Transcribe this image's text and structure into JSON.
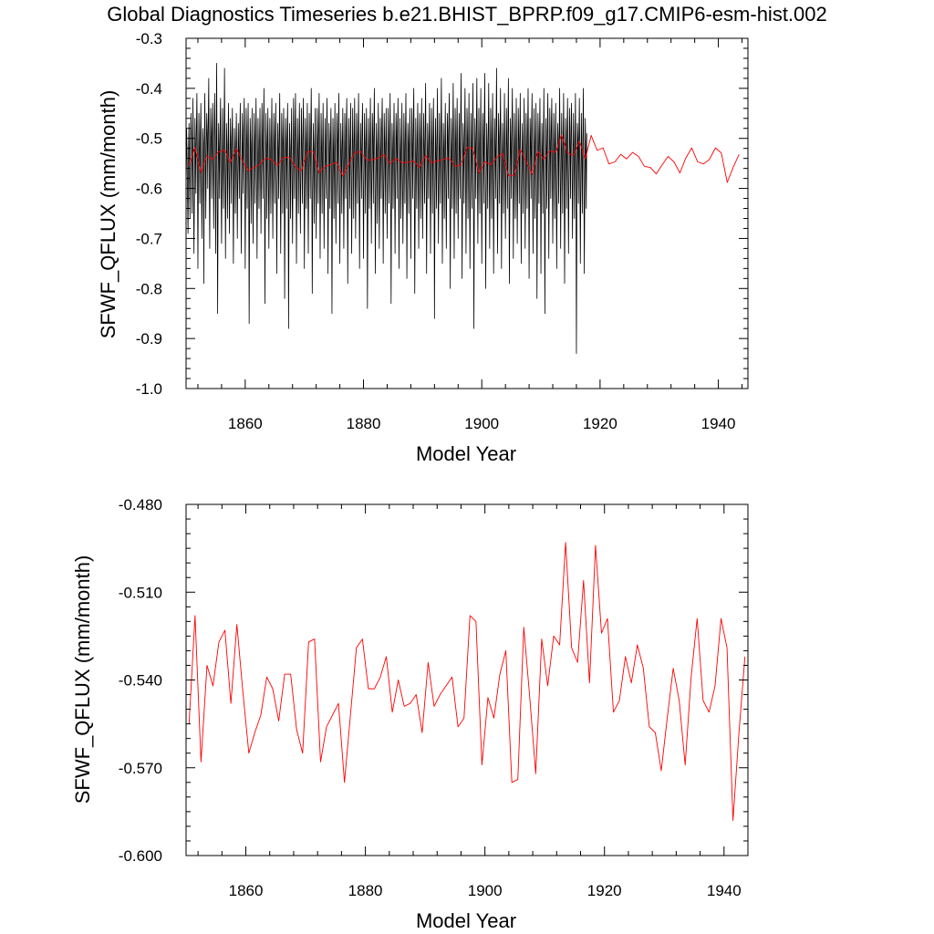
{
  "title": "Global Diagnostics Timeseries b.e21.BHIST_BPRP.f09_g17.CMIP6-esm-hist.002",
  "colors": {
    "monthly": "#000000",
    "annual": "#ff0000",
    "axes": "#000000"
  },
  "chart_data": [
    {
      "type": "line",
      "panel": "top",
      "xlabel": "Model Year",
      "ylabel": "SFWF_QFLUX (mm/month)",
      "xlim": [
        1850,
        1945
      ],
      "ylim": [
        -1.0,
        -0.3
      ],
      "xticks": [
        1860,
        1880,
        1900,
        1920,
        1940
      ],
      "xtick_labels": [
        "1860",
        "1880",
        "1900",
        "1920",
        "1940"
      ],
      "yticks": [
        -1.0,
        -0.9,
        -0.8,
        -0.7,
        -0.6,
        -0.5,
        -0.4,
        -0.3
      ],
      "ytick_labels": [
        "-1.0",
        "-0.9",
        "-0.8",
        "-0.7",
        "-0.6",
        "-0.5",
        "-0.4",
        "-0.3"
      ],
      "grid": false,
      "legend": "none",
      "monthly_series": {
        "x_start": 1850.0,
        "x_step": 0.0833333,
        "values": [
          -0.6,
          -0.48,
          -0.53,
          -0.62,
          -0.69,
          -0.52,
          -0.47,
          -0.58,
          -0.66,
          -0.51,
          -0.45,
          -0.5,
          -0.65,
          -0.54,
          -0.42,
          -0.59,
          -0.73,
          -0.6,
          -0.46,
          -0.52,
          -0.61,
          -0.48,
          -0.41,
          -0.55,
          -0.76,
          -0.57,
          -0.45,
          -0.53,
          -0.63,
          -0.49,
          -0.43,
          -0.56,
          -0.7,
          -0.58,
          -0.48,
          -0.51,
          -0.79,
          -0.55,
          -0.41,
          -0.52,
          -0.66,
          -0.53,
          -0.45,
          -0.49,
          -0.6,
          -0.47,
          -0.38,
          -0.57,
          -0.72,
          -0.56,
          -0.44,
          -0.5,
          -0.62,
          -0.49,
          -0.43,
          -0.54,
          -0.68,
          -0.52,
          -0.41,
          -0.5,
          -0.73,
          -0.55,
          -0.35,
          -0.56,
          -0.85,
          -0.62,
          -0.47,
          -0.52,
          -0.62,
          -0.48,
          -0.42,
          -0.59,
          -0.71,
          -0.57,
          -0.44,
          -0.55,
          -0.64,
          -0.51,
          -0.36,
          -0.54,
          -0.74,
          -0.58,
          -0.47,
          -0.51,
          -0.66,
          -0.54,
          -0.43,
          -0.56,
          -0.69,
          -0.55,
          -0.46,
          -0.52,
          -0.63,
          -0.5,
          -0.44,
          -0.57,
          -0.75,
          -0.6,
          -0.48,
          -0.53,
          -0.65,
          -0.52,
          -0.45,
          -0.55,
          -0.7,
          -0.57,
          -0.47,
          -0.53,
          -0.62,
          -0.49,
          -0.43,
          -0.58,
          -0.73,
          -0.59,
          -0.45,
          -0.52,
          -0.61,
          -0.48,
          -0.42,
          -0.56,
          -0.76,
          -0.58,
          -0.44,
          -0.5,
          -0.64,
          -0.52,
          -0.43,
          -0.57,
          -0.87,
          -0.62,
          -0.46,
          -0.51,
          -0.67,
          -0.53,
          -0.44,
          -0.58,
          -0.71,
          -0.57,
          -0.45,
          -0.52,
          -0.63,
          -0.5,
          -0.42,
          -0.55,
          -0.74,
          -0.59,
          -0.46,
          -0.53,
          -0.64,
          -0.51,
          -0.44,
          -0.56,
          -0.69,
          -0.56,
          -0.43,
          -0.52,
          -0.62,
          -0.49,
          -0.4,
          -0.55,
          -0.83,
          -0.6,
          -0.45,
          -0.51,
          -0.66,
          -0.52,
          -0.44,
          -0.57,
          -0.72,
          -0.58,
          -0.46,
          -0.53,
          -0.65,
          -0.51,
          -0.42,
          -0.56,
          -0.7,
          -0.56,
          -0.45,
          -0.52,
          -0.63,
          -0.5,
          -0.43,
          -0.55,
          -0.77,
          -0.6,
          -0.47,
          -0.52,
          -0.62,
          -0.49,
          -0.41,
          -0.57,
          -0.73,
          -0.58,
          -0.45,
          -0.5,
          -0.65,
          -0.52,
          -0.44,
          -0.56,
          -0.82,
          -0.61,
          -0.46,
          -0.51,
          -0.64,
          -0.51,
          -0.43,
          -0.55,
          -0.88,
          -0.63,
          -0.47,
          -0.52,
          -0.66,
          -0.53,
          -0.44,
          -0.57,
          -0.71,
          -0.56,
          -0.42,
          -0.51,
          -0.62,
          -0.49,
          -0.41,
          -0.55,
          -0.75,
          -0.59,
          -0.46,
          -0.53,
          -0.65,
          -0.51,
          -0.43,
          -0.57,
          -0.69,
          -0.56,
          -0.44,
          -0.52,
          -0.63,
          -0.5,
          -0.42,
          -0.55,
          -0.76,
          -0.6,
          -0.46,
          -0.51,
          -0.64,
          -0.52,
          -0.43,
          -0.57,
          -0.73,
          -0.57,
          -0.45,
          -0.53,
          -0.62,
          -0.48,
          -0.4,
          -0.56,
          -0.81,
          -0.61,
          -0.47,
          -0.52,
          -0.67,
          -0.53,
          -0.44,
          -0.56,
          -0.7,
          -0.56,
          -0.44,
          -0.51,
          -0.63,
          -0.49,
          -0.41,
          -0.55,
          -0.74,
          -0.59,
          -0.45,
          -0.52,
          -0.65,
          -0.52,
          -0.43,
          -0.57,
          -0.72,
          -0.58,
          -0.46,
          -0.53,
          -0.62,
          -0.5,
          -0.42,
          -0.55,
          -0.77,
          -0.6,
          -0.47,
          -0.51,
          -0.64,
          -0.51,
          -0.44,
          -0.56,
          -0.85,
          -0.62,
          -0.46,
          -0.52,
          -0.66,
          -0.53,
          -0.43,
          -0.57,
          -0.71,
          -0.57,
          -0.45,
          -0.5,
          -0.63,
          -0.49,
          -0.41,
          -0.56,
          -0.75,
          -0.59,
          -0.47,
          -0.52,
          -0.65,
          -0.52,
          -0.44,
          -0.55,
          -0.72,
          -0.58,
          -0.45,
          -0.53,
          -0.62,
          -0.48,
          -0.42,
          -0.56,
          -0.79,
          -0.61,
          -0.46,
          -0.52,
          -0.64,
          -0.51,
          -0.43,
          -0.57,
          -0.73,
          -0.57,
          -0.44,
          -0.51,
          -0.66,
          -0.52,
          -0.42,
          -0.55,
          -0.7,
          -0.56,
          -0.45,
          -0.52,
          -0.63,
          -0.5,
          -0.41,
          -0.56,
          -0.76,
          -0.6,
          -0.47,
          -0.53,
          -0.62,
          -0.49,
          -0.43,
          -0.57,
          -0.74,
          -0.58,
          -0.45,
          -0.51,
          -0.65,
          -0.52,
          -0.44,
          -0.56,
          -0.84,
          -0.62,
          -0.46,
          -0.52,
          -0.64,
          -0.51,
          -0.42,
          -0.55,
          -0.71,
          -0.57,
          -0.45,
          -0.5,
          -0.63,
          -0.49,
          -0.4,
          -0.56,
          -0.77,
          -0.6,
          -0.47,
          -0.52,
          -0.67,
          -0.53,
          -0.43,
          -0.57,
          -0.72,
          -0.58,
          -0.46,
          -0.53,
          -0.62,
          -0.48,
          -0.42,
          -0.55,
          -0.75,
          -0.59,
          -0.45,
          -0.51,
          -0.65,
          -0.52,
          -0.44,
          -0.56,
          -0.7,
          -0.56,
          -0.44,
          -0.52,
          -0.63,
          -0.5,
          -0.41,
          -0.57,
          -0.83,
          -0.61,
          -0.47,
          -0.52,
          -0.64,
          -0.51,
          -0.43,
          -0.56,
          -0.73,
          -0.57,
          -0.45,
          -0.5,
          -0.62,
          -0.49,
          -0.42,
          -0.55,
          -0.76,
          -0.6,
          -0.46,
          -0.53,
          -0.66,
          -0.52,
          -0.43,
          -0.57,
          -0.71,
          -0.58,
          -0.45,
          -0.52,
          -0.63,
          -0.5,
          -0.41,
          -0.56,
          -0.78,
          -0.6,
          -0.47,
          -0.51,
          -0.65,
          -0.52,
          -0.44,
          -0.55,
          -0.74,
          -0.57,
          -0.44,
          -0.52,
          -0.62,
          -0.48,
          -0.4,
          -0.57,
          -0.81,
          -0.62,
          -0.46,
          -0.53,
          -0.64,
          -0.51,
          -0.43,
          -0.56,
          -0.72,
          -0.58,
          -0.45,
          -0.5,
          -0.66,
          -0.53,
          -0.42,
          -0.55,
          -0.7,
          -0.56,
          -0.45,
          -0.52,
          -0.63,
          -0.49,
          -0.39,
          -0.56,
          -0.77,
          -0.6,
          -0.47,
          -0.52,
          -0.62,
          -0.5,
          -0.43,
          -0.57,
          -0.73,
          -0.58,
          -0.44,
          -0.51,
          -0.65,
          -0.52,
          -0.42,
          -0.55,
          -0.86,
          -0.63,
          -0.46,
          -0.52,
          -0.64,
          -0.51,
          -0.4,
          -0.56,
          -0.71,
          -0.57,
          -0.45,
          -0.53,
          -0.63,
          -0.49,
          -0.38,
          -0.55,
          -0.75,
          -0.59,
          -0.47,
          -0.52,
          -0.66,
          -0.52,
          -0.43,
          -0.57,
          -0.72,
          -0.58,
          -0.45,
          -0.5,
          -0.62,
          -0.48,
          -0.41,
          -0.56,
          -0.8,
          -0.61,
          -0.46,
          -0.52,
          -0.64,
          -0.5,
          -0.39,
          -0.55,
          -0.74,
          -0.58,
          -0.44,
          -0.51,
          -0.65,
          -0.51,
          -0.42,
          -0.57,
          -0.7,
          -0.56,
          -0.45,
          -0.53,
          -0.62,
          -0.47,
          -0.37,
          -0.56,
          -0.78,
          -0.6,
          -0.47,
          -0.52,
          -0.63,
          -0.49,
          -0.4,
          -0.55,
          -0.73,
          -0.57,
          -0.44,
          -0.5,
          -0.66,
          -0.52,
          -0.41,
          -0.57,
          -0.76,
          -0.59,
          -0.45,
          -0.52,
          -0.64,
          -0.5,
          -0.39,
          -0.56,
          -0.88,
          -0.62,
          -0.46,
          -0.51,
          -0.62,
          -0.48,
          -0.38,
          -0.55,
          -0.71,
          -0.56,
          -0.44,
          -0.53,
          -0.65,
          -0.51,
          -0.4,
          -0.57,
          -0.75,
          -0.59,
          -0.45,
          -0.5,
          -0.63,
          -0.49,
          -0.37,
          -0.56,
          -0.8,
          -0.61,
          -0.47,
          -0.52,
          -0.64,
          -0.5,
          -0.39,
          -0.55,
          -0.72,
          -0.57,
          -0.44,
          -0.51,
          -0.66,
          -0.52,
          -0.41,
          -0.56,
          -0.77,
          -0.6,
          -0.46,
          -0.52,
          -0.62,
          -0.48,
          -0.36,
          -0.57,
          -0.73,
          -0.58,
          -0.45,
          -0.5,
          -0.63,
          -0.5,
          -0.4,
          -0.55,
          -0.76,
          -0.59,
          -0.47,
          -0.53,
          -0.65,
          -0.51,
          -0.41,
          -0.56,
          -0.7,
          -0.56,
          -0.44,
          -0.52,
          -0.64,
          -0.49,
          -0.38,
          -0.57,
          -0.79,
          -0.61,
          -0.46,
          -0.51,
          -0.62,
          -0.48,
          -0.4,
          -0.55,
          -0.74,
          -0.58,
          -0.45,
          -0.52,
          -0.66,
          -0.52,
          -0.42,
          -0.56,
          -0.71,
          -0.57,
          -0.44,
          -0.5,
          -0.63,
          -0.5,
          -0.41,
          -0.57,
          -0.75,
          -0.59,
          -0.47,
          -0.53,
          -0.65,
          -0.51,
          -0.42,
          -0.55,
          -0.72,
          -0.57,
          -0.45,
          -0.52,
          -0.64,
          -0.49,
          -0.4,
          -0.56,
          -0.78,
          -0.6,
          -0.46,
          -0.51,
          -0.62,
          -0.48,
          -0.41,
          -0.57,
          -0.73,
          -0.58,
          -0.44,
          -0.52,
          -0.66,
          -0.52,
          -0.43,
          -0.55,
          -0.82,
          -0.62,
          -0.45,
          -0.5,
          -0.63,
          -0.5,
          -0.42,
          -0.56,
          -0.77,
          -0.6,
          -0.47,
          -0.53,
          -0.65,
          -0.51,
          -0.4,
          -0.57,
          -0.85,
          -0.63,
          -0.46,
          -0.52,
          -0.64,
          -0.49,
          -0.41,
          -0.55,
          -0.74,
          -0.58,
          -0.44,
          -0.51,
          -0.62,
          -0.48,
          -0.42,
          -0.56,
          -0.71,
          -0.56,
          -0.45,
          -0.52,
          -0.66,
          -0.52,
          -0.43,
          -0.57,
          -0.76,
          -0.59,
          -0.47,
          -0.5,
          -0.63,
          -0.5,
          -0.4,
          -0.55,
          -0.72,
          -0.57,
          -0.45,
          -0.53,
          -0.65,
          -0.51,
          -0.41,
          -0.56,
          -0.79,
          -0.61,
          -0.46,
          -0.52,
          -0.64,
          -0.49,
          -0.42,
          -0.57,
          -0.73,
          -0.58,
          -0.44,
          -0.51,
          -0.62,
          -0.48,
          -0.43,
          -0.55,
          -0.7,
          -0.56,
          -0.45,
          -0.52,
          -0.66,
          -0.52,
          -0.41,
          -0.56,
          -0.93,
          -0.64,
          -0.47,
          -0.5,
          -0.63,
          -0.5,
          -0.42,
          -0.57,
          -0.75,
          -0.59,
          -0.45,
          -0.53,
          -0.65,
          -0.51,
          -0.4,
          -0.55,
          -0.77,
          -0.6,
          -0.46,
          -0.52,
          -0.64,
          -0.49
        ]
      },
      "annual_series": {
        "x_start": 1850.5,
        "x_step": 1,
        "values": [
          -0.555,
          -0.518,
          -0.568,
          -0.535,
          -0.542,
          -0.527,
          -0.523,
          -0.548,
          -0.521,
          -0.544,
          -0.565,
          -0.558,
          -0.552,
          -0.539,
          -0.543,
          -0.554,
          -0.538,
          -0.538,
          -0.557,
          -0.565,
          -0.527,
          -0.526,
          -0.568,
          -0.556,
          -0.552,
          -0.548,
          -0.575,
          -0.552,
          -0.529,
          -0.526,
          -0.543,
          -0.543,
          -0.539,
          -0.532,
          -0.551,
          -0.54,
          -0.549,
          -0.548,
          -0.545,
          -0.558,
          -0.534,
          -0.549,
          -0.545,
          -0.542,
          -0.539,
          -0.556,
          -0.553,
          -0.518,
          -0.52,
          -0.569,
          -0.546,
          -0.553,
          -0.538,
          -0.53,
          -0.575,
          -0.574,
          -0.522,
          -0.546,
          -0.572,
          -0.526,
          -0.542,
          -0.525,
          -0.528,
          -0.493,
          -0.529,
          -0.534,
          -0.506,
          -0.541,
          -0.494,
          -0.524,
          -0.519,
          -0.551,
          -0.547,
          -0.532,
          -0.541,
          -0.528,
          -0.536,
          -0.556,
          -0.558,
          -0.571,
          -0.553,
          -0.536,
          -0.547,
          -0.569,
          -0.539,
          -0.519,
          -0.547,
          -0.551,
          -0.542,
          -0.519,
          -0.529,
          -0.588,
          -0.558,
          -0.532
        ]
      }
    },
    {
      "type": "line",
      "panel": "bottom",
      "xlabel": "Model Year",
      "ylabel": "SFWF_QFLUX (mm/month)",
      "xlim": [
        1850,
        1944
      ],
      "ylim": [
        -0.6,
        -0.48
      ],
      "xticks": [
        1860,
        1880,
        1900,
        1920,
        1940
      ],
      "xtick_labels": [
        "1860",
        "1880",
        "1900",
        "1920",
        "1940"
      ],
      "yticks": [
        -0.6,
        -0.57,
        -0.54,
        -0.51,
        -0.48
      ],
      "ytick_labels": [
        "-0.600",
        "-0.570",
        "-0.540",
        "-0.510",
        "-0.480"
      ],
      "grid": false,
      "legend": "none",
      "annual_series": {
        "x_start": 1850.5,
        "x_step": 1,
        "values": [
          -0.555,
          -0.518,
          -0.568,
          -0.535,
          -0.542,
          -0.527,
          -0.523,
          -0.548,
          -0.521,
          -0.544,
          -0.565,
          -0.558,
          -0.552,
          -0.539,
          -0.543,
          -0.554,
          -0.538,
          -0.538,
          -0.557,
          -0.565,
          -0.527,
          -0.526,
          -0.568,
          -0.556,
          -0.552,
          -0.548,
          -0.575,
          -0.552,
          -0.529,
          -0.526,
          -0.543,
          -0.543,
          -0.539,
          -0.532,
          -0.551,
          -0.54,
          -0.549,
          -0.548,
          -0.545,
          -0.558,
          -0.534,
          -0.549,
          -0.545,
          -0.542,
          -0.539,
          -0.556,
          -0.553,
          -0.518,
          -0.52,
          -0.569,
          -0.546,
          -0.553,
          -0.538,
          -0.53,
          -0.575,
          -0.574,
          -0.522,
          -0.546,
          -0.572,
          -0.526,
          -0.542,
          -0.525,
          -0.528,
          -0.493,
          -0.529,
          -0.534,
          -0.506,
          -0.541,
          -0.494,
          -0.524,
          -0.519,
          -0.551,
          -0.547,
          -0.532,
          -0.541,
          -0.528,
          -0.536,
          -0.556,
          -0.558,
          -0.571,
          -0.553,
          -0.536,
          -0.547,
          -0.569,
          -0.539,
          -0.519,
          -0.547,
          -0.551,
          -0.542,
          -0.519,
          -0.529,
          -0.588,
          -0.558,
          -0.532
        ]
      }
    }
  ]
}
